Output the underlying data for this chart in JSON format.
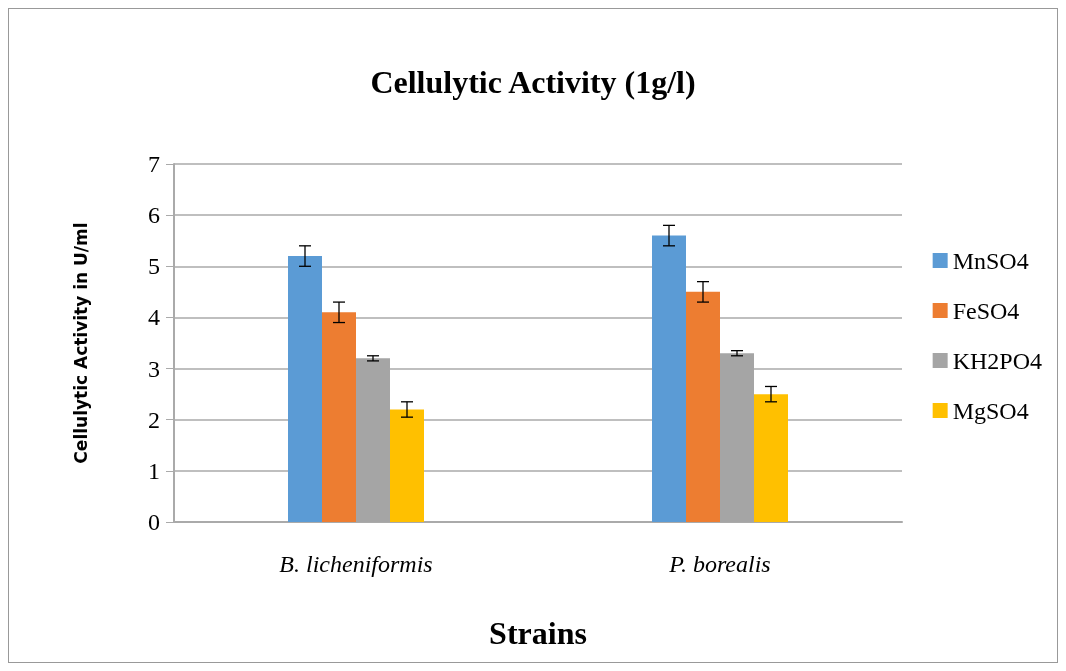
{
  "chart_data": {
    "type": "bar",
    "title": "Cellulytic Activity (1g/l)",
    "xlabel": "Strains",
    "ylabel": "Cellulytic Activity in U/ml",
    "categories": [
      "B. licheniformis",
      "P. borealis"
    ],
    "series": [
      {
        "name": "MnSO4",
        "color": "#5b9bd5",
        "values": [
          5.2,
          5.6
        ],
        "errors": [
          0.2,
          0.2
        ]
      },
      {
        "name": "FeSO4",
        "color": "#ed7d31",
        "values": [
          4.1,
          4.5
        ],
        "errors": [
          0.2,
          0.2
        ]
      },
      {
        "name": "KH2PO4",
        "color": "#a5a5a5",
        "values": [
          3.2,
          3.3
        ],
        "errors": [
          0.05,
          0.05
        ]
      },
      {
        "name": "MgSO4",
        "color": "#ffc000",
        "values": [
          2.2,
          2.5
        ],
        "errors": [
          0.15,
          0.15
        ]
      }
    ],
    "ylim": [
      0,
      7
    ],
    "yticks": [
      0,
      1,
      2,
      3,
      4,
      5,
      6,
      7
    ],
    "grid": "y",
    "legend": "right"
  }
}
